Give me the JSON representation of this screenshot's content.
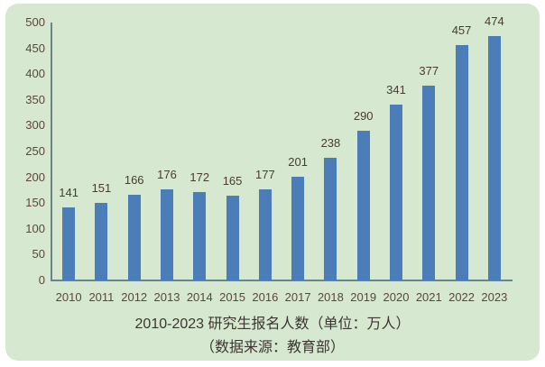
{
  "colors": {
    "page_bg": "#ffffff",
    "panel_bg": "#d6e8d0",
    "bar": "#4b7db8",
    "axis": "#68858f",
    "tick_label": "#5d453d",
    "data_label": "#4a3a33",
    "title": "#3c3531"
  },
  "chart_data": {
    "type": "bar",
    "categories": [
      "2010",
      "2011",
      "2012",
      "2013",
      "2014",
      "2015",
      "2016",
      "2017",
      "2018",
      "2019",
      "2020",
      "2021",
      "2022",
      "2023"
    ],
    "values": [
      141,
      151,
      166,
      176,
      172,
      165,
      177,
      201,
      238,
      290,
      341,
      377,
      457,
      474
    ],
    "title": "2010-2023 研究生报名人数（单位：万人）",
    "subtitle": "（数据来源：教育部）",
    "xlabel": "",
    "ylabel": "",
    "ylim": [
      0,
      500
    ],
    "yticks": [
      0,
      50,
      100,
      150,
      200,
      250,
      300,
      350,
      400,
      450,
      500
    ],
    "grid": false,
    "legend": "none",
    "data_labels": true
  }
}
